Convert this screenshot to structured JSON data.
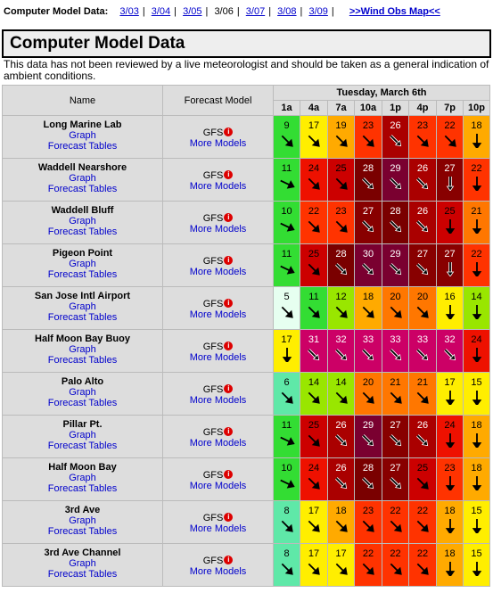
{
  "topbar": {
    "label": "Computer Model Data:",
    "dates": [
      "3/03",
      "3/04",
      "3/05",
      "3/06",
      "3/07",
      "3/08",
      "3/09"
    ],
    "current_index": 3,
    "map_link": ">>Wind Obs Map<<"
  },
  "title": "Computer Model Data",
  "description": "This data has not been reviewed by a live meteorologist and should be taken as a general indication of ambient conditions.",
  "table": {
    "col_name": "Name",
    "col_model": "Forecast Model",
    "date_header": "Tuesday, March 6th",
    "hours": [
      "1a",
      "4a",
      "7a",
      "10a",
      "1p",
      "4p",
      "7p",
      "10p"
    ],
    "graph_label": "Graph",
    "tables_label": "Forecast Tables",
    "model_label": "GFS",
    "info_glyph": "i",
    "more_label": "More Models",
    "rows": [
      {
        "name": "Long Marine Lab",
        "values": [
          9,
          17,
          19,
          23,
          26,
          23,
          22,
          18
        ],
        "dirs": [
          "SE",
          "SE",
          "SE",
          "SE",
          "SE",
          "SE",
          "SE",
          "S"
        ]
      },
      {
        "name": "Waddell Nearshore",
        "values": [
          11,
          24,
          25,
          28,
          29,
          26,
          27,
          22
        ],
        "dirs": [
          "ESE",
          "SE",
          "SE",
          "SE",
          "SE",
          "SE",
          "S",
          "S"
        ]
      },
      {
        "name": "Waddell Bluff",
        "values": [
          10,
          22,
          23,
          27,
          28,
          26,
          25,
          21
        ],
        "dirs": [
          "ESE",
          "SE",
          "SE",
          "SE",
          "SE",
          "SE",
          "S",
          "S"
        ]
      },
      {
        "name": "Pigeon Point",
        "values": [
          11,
          25,
          28,
          30,
          29,
          27,
          27,
          22
        ],
        "dirs": [
          "ESE",
          "SE",
          "SE",
          "SE",
          "SE",
          "SE",
          "S",
          "S"
        ]
      },
      {
        "name": "San Jose Intl Airport",
        "values": [
          5,
          11,
          12,
          18,
          20,
          20,
          16,
          14
        ],
        "dirs": [
          "E",
          "SE",
          "SE",
          "SE",
          "SE",
          "SE",
          "S",
          "S"
        ]
      },
      {
        "name": "Half Moon Bay Buoy",
        "values": [
          17,
          31,
          32,
          33,
          33,
          33,
          32,
          24
        ],
        "dirs": [
          "S",
          "SE",
          "SE",
          "SE",
          "SE",
          "SE",
          "SE",
          "S"
        ]
      },
      {
        "name": "Palo Alto",
        "values": [
          6,
          14,
          14,
          20,
          21,
          21,
          17,
          15
        ],
        "dirs": [
          "E",
          "SE",
          "SE",
          "SE",
          "SE",
          "SE",
          "S",
          "S"
        ]
      },
      {
        "name": "Pillar Pt.",
        "values": [
          11,
          25,
          26,
          29,
          27,
          26,
          24,
          18
        ],
        "dirs": [
          "ESE",
          "SE",
          "SE",
          "SE",
          "SE",
          "SE",
          "S",
          "S"
        ]
      },
      {
        "name": "Half Moon Bay",
        "values": [
          10,
          24,
          26,
          28,
          27,
          25,
          23,
          18
        ],
        "dirs": [
          "ESE",
          "SE",
          "SE",
          "SE",
          "SE",
          "SE",
          "S",
          "S"
        ]
      },
      {
        "name": "3rd Ave",
        "values": [
          8,
          17,
          18,
          23,
          22,
          22,
          18,
          15
        ],
        "dirs": [
          "E",
          "SE",
          "SE",
          "SE",
          "SE",
          "SE",
          "S",
          "S"
        ]
      },
      {
        "name": "3rd Ave Channel",
        "values": [
          8,
          17,
          17,
          22,
          22,
          22,
          18,
          15
        ],
        "dirs": [
          "E",
          "SE",
          "SE",
          "SE",
          "SE",
          "SE",
          "S",
          "S"
        ]
      }
    ]
  },
  "colors": {
    "link": "#0000cc",
    "header_bg": "#dddddd",
    "scale_note": "wind knots colour scale from light green (calm) through yellow, orange, red to dark maroon/magenta (strong)"
  }
}
